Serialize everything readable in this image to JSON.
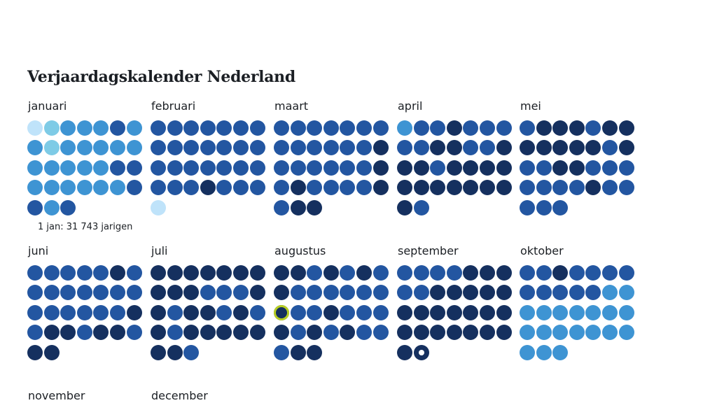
{
  "title": "Verjaardagskalender Nederland",
  "annotation": "1 jan: 31 743 jarigen",
  "colors": {
    "l0": "#bfe3fa",
    "l1": "#7ecbe6",
    "l2": "#3e94d3",
    "l3": "#2356a1",
    "l4": "#15305f",
    "highlight_ring": "#b8cf22"
  },
  "months": [
    {
      "label": "januari",
      "levels": [
        0,
        1,
        2,
        2,
        2,
        3,
        2,
        2,
        1,
        2,
        2,
        2,
        2,
        2,
        2,
        2,
        2,
        2,
        2,
        3,
        3,
        2,
        2,
        2,
        2,
        2,
        2,
        3,
        3,
        2,
        3
      ]
    },
    {
      "label": "februari",
      "levels": [
        3,
        3,
        3,
        3,
        3,
        3,
        3,
        3,
        3,
        3,
        3,
        3,
        3,
        3,
        3,
        3,
        3,
        3,
        3,
        3,
        3,
        3,
        3,
        3,
        4,
        3,
        3,
        3,
        0
      ]
    },
    {
      "label": "maart",
      "levels": [
        3,
        3,
        3,
        3,
        3,
        3,
        3,
        3,
        3,
        3,
        3,
        3,
        3,
        4,
        3,
        3,
        3,
        3,
        3,
        3,
        4,
        3,
        4,
        3,
        3,
        3,
        3,
        4,
        3,
        4,
        4
      ]
    },
    {
      "label": "april",
      "levels": [
        2,
        3,
        3,
        4,
        3,
        3,
        3,
        3,
        3,
        4,
        4,
        3,
        3,
        4,
        4,
        4,
        3,
        4,
        4,
        4,
        4,
        4,
        4,
        4,
        4,
        4,
        4,
        4,
        4,
        3
      ]
    },
    {
      "label": "mei",
      "levels": [
        3,
        4,
        4,
        4,
        3,
        4,
        4,
        4,
        4,
        4,
        4,
        4,
        3,
        4,
        3,
        3,
        4,
        4,
        3,
        3,
        3,
        3,
        3,
        3,
        3,
        4,
        3,
        3,
        3,
        3,
        3
      ]
    },
    {
      "label": "juni",
      "levels": [
        3,
        3,
        3,
        3,
        3,
        4,
        3,
        3,
        3,
        3,
        3,
        3,
        3,
        3,
        3,
        3,
        3,
        3,
        3,
        3,
        4,
        3,
        4,
        4,
        3,
        4,
        4,
        3,
        4,
        4
      ]
    },
    {
      "label": "juli",
      "levels": [
        4,
        4,
        4,
        4,
        4,
        4,
        4,
        4,
        4,
        4,
        3,
        3,
        3,
        4,
        4,
        3,
        4,
        4,
        3,
        4,
        3,
        4,
        3,
        4,
        4,
        4,
        4,
        4,
        4,
        4,
        3
      ]
    },
    {
      "label": "augustus",
      "levels": [
        4,
        4,
        3,
        4,
        3,
        4,
        3,
        4,
        3,
        3,
        3,
        3,
        3,
        3,
        4,
        3,
        3,
        4,
        3,
        3,
        3,
        4,
        3,
        4,
        3,
        4,
        3,
        3,
        3,
        4,
        4
      ],
      "highlight_day": 15
    },
    {
      "label": "september",
      "levels": [
        3,
        3,
        3,
        3,
        4,
        4,
        4,
        3,
        3,
        4,
        4,
        4,
        4,
        4,
        4,
        4,
        4,
        4,
        4,
        4,
        4,
        4,
        4,
        4,
        4,
        4,
        4,
        4,
        4,
        4
      ],
      "selected_day": 30
    },
    {
      "label": "oktober",
      "levels": [
        3,
        3,
        4,
        3,
        3,
        3,
        3,
        3,
        3,
        3,
        3,
        3,
        2,
        2,
        2,
        2,
        2,
        2,
        2,
        2,
        2,
        2,
        2,
        2,
        2,
        2,
        2,
        2,
        2,
        2,
        2
      ]
    },
    {
      "label": "november",
      "levels": []
    },
    {
      "label": "december",
      "levels": []
    }
  ],
  "chart_data": {
    "type": "heatmap",
    "title": "Verjaardagskalender Nederland",
    "annotation": "1 jan: 31 743 jarigen",
    "scale": "5 color levels (0 = fewest birthdays, 4 = most)",
    "categories": [
      "januari",
      "februari",
      "maart",
      "april",
      "mei",
      "juni",
      "juli",
      "augustus",
      "september",
      "oktober",
      "november",
      "december"
    ],
    "series": [
      {
        "name": "januari",
        "values": [
          0,
          1,
          2,
          2,
          2,
          3,
          2,
          2,
          1,
          2,
          2,
          2,
          2,
          2,
          2,
          2,
          2,
          2,
          2,
          3,
          3,
          2,
          2,
          2,
          2,
          2,
          2,
          3,
          3,
          2,
          3
        ]
      },
      {
        "name": "februari",
        "values": [
          3,
          3,
          3,
          3,
          3,
          3,
          3,
          3,
          3,
          3,
          3,
          3,
          3,
          3,
          3,
          3,
          3,
          3,
          3,
          3,
          3,
          3,
          3,
          3,
          4,
          3,
          3,
          3,
          0
        ]
      },
      {
        "name": "maart",
        "values": [
          3,
          3,
          3,
          3,
          3,
          3,
          3,
          3,
          3,
          3,
          3,
          3,
          3,
          4,
          3,
          3,
          3,
          3,
          3,
          3,
          4,
          3,
          4,
          3,
          3,
          3,
          3,
          4,
          3,
          4,
          4
        ]
      },
      {
        "name": "april",
        "values": [
          2,
          3,
          3,
          4,
          3,
          3,
          3,
          3,
          3,
          4,
          4,
          3,
          3,
          4,
          4,
          4,
          3,
          4,
          4,
          4,
          4,
          4,
          4,
          4,
          4,
          4,
          4,
          4,
          4,
          3
        ]
      },
      {
        "name": "mei",
        "values": [
          3,
          4,
          4,
          4,
          3,
          4,
          4,
          4,
          4,
          4,
          4,
          4,
          3,
          4,
          3,
          3,
          4,
          4,
          3,
          3,
          3,
          3,
          3,
          3,
          3,
          4,
          3,
          3,
          3,
          3,
          3
        ]
      },
      {
        "name": "juni",
        "values": [
          3,
          3,
          3,
          3,
          3,
          4,
          3,
          3,
          3,
          3,
          3,
          3,
          3,
          3,
          3,
          3,
          3,
          3,
          3,
          3,
          4,
          3,
          4,
          4,
          3,
          4,
          4,
          3,
          4,
          4
        ]
      },
      {
        "name": "juli",
        "values": [
          4,
          4,
          4,
          4,
          4,
          4,
          4,
          4,
          4,
          4,
          3,
          3,
          3,
          4,
          4,
          3,
          4,
          4,
          3,
          4,
          3,
          4,
          3,
          4,
          4,
          4,
          4,
          4,
          4,
          4,
          3
        ]
      },
      {
        "name": "augustus",
        "values": [
          4,
          4,
          3,
          4,
          3,
          4,
          3,
          4,
          3,
          3,
          3,
          3,
          3,
          3,
          4,
          3,
          3,
          4,
          3,
          3,
          3,
          4,
          3,
          4,
          3,
          4,
          3,
          3,
          3,
          4,
          4
        ]
      },
      {
        "name": "september",
        "values": [
          3,
          3,
          3,
          3,
          4,
          4,
          4,
          3,
          3,
          4,
          4,
          4,
          4,
          4,
          4,
          4,
          4,
          4,
          4,
          4,
          4,
          4,
          4,
          4,
          4,
          4,
          4,
          4,
          4,
          4
        ]
      },
      {
        "name": "oktober",
        "values": [
          3,
          3,
          4,
          3,
          3,
          3,
          3,
          3,
          3,
          3,
          3,
          3,
          2,
          2,
          2,
          2,
          2,
          2,
          2,
          2,
          2,
          2,
          2,
          2,
          2,
          2,
          2,
          2,
          2,
          2,
          2
        ]
      }
    ]
  }
}
